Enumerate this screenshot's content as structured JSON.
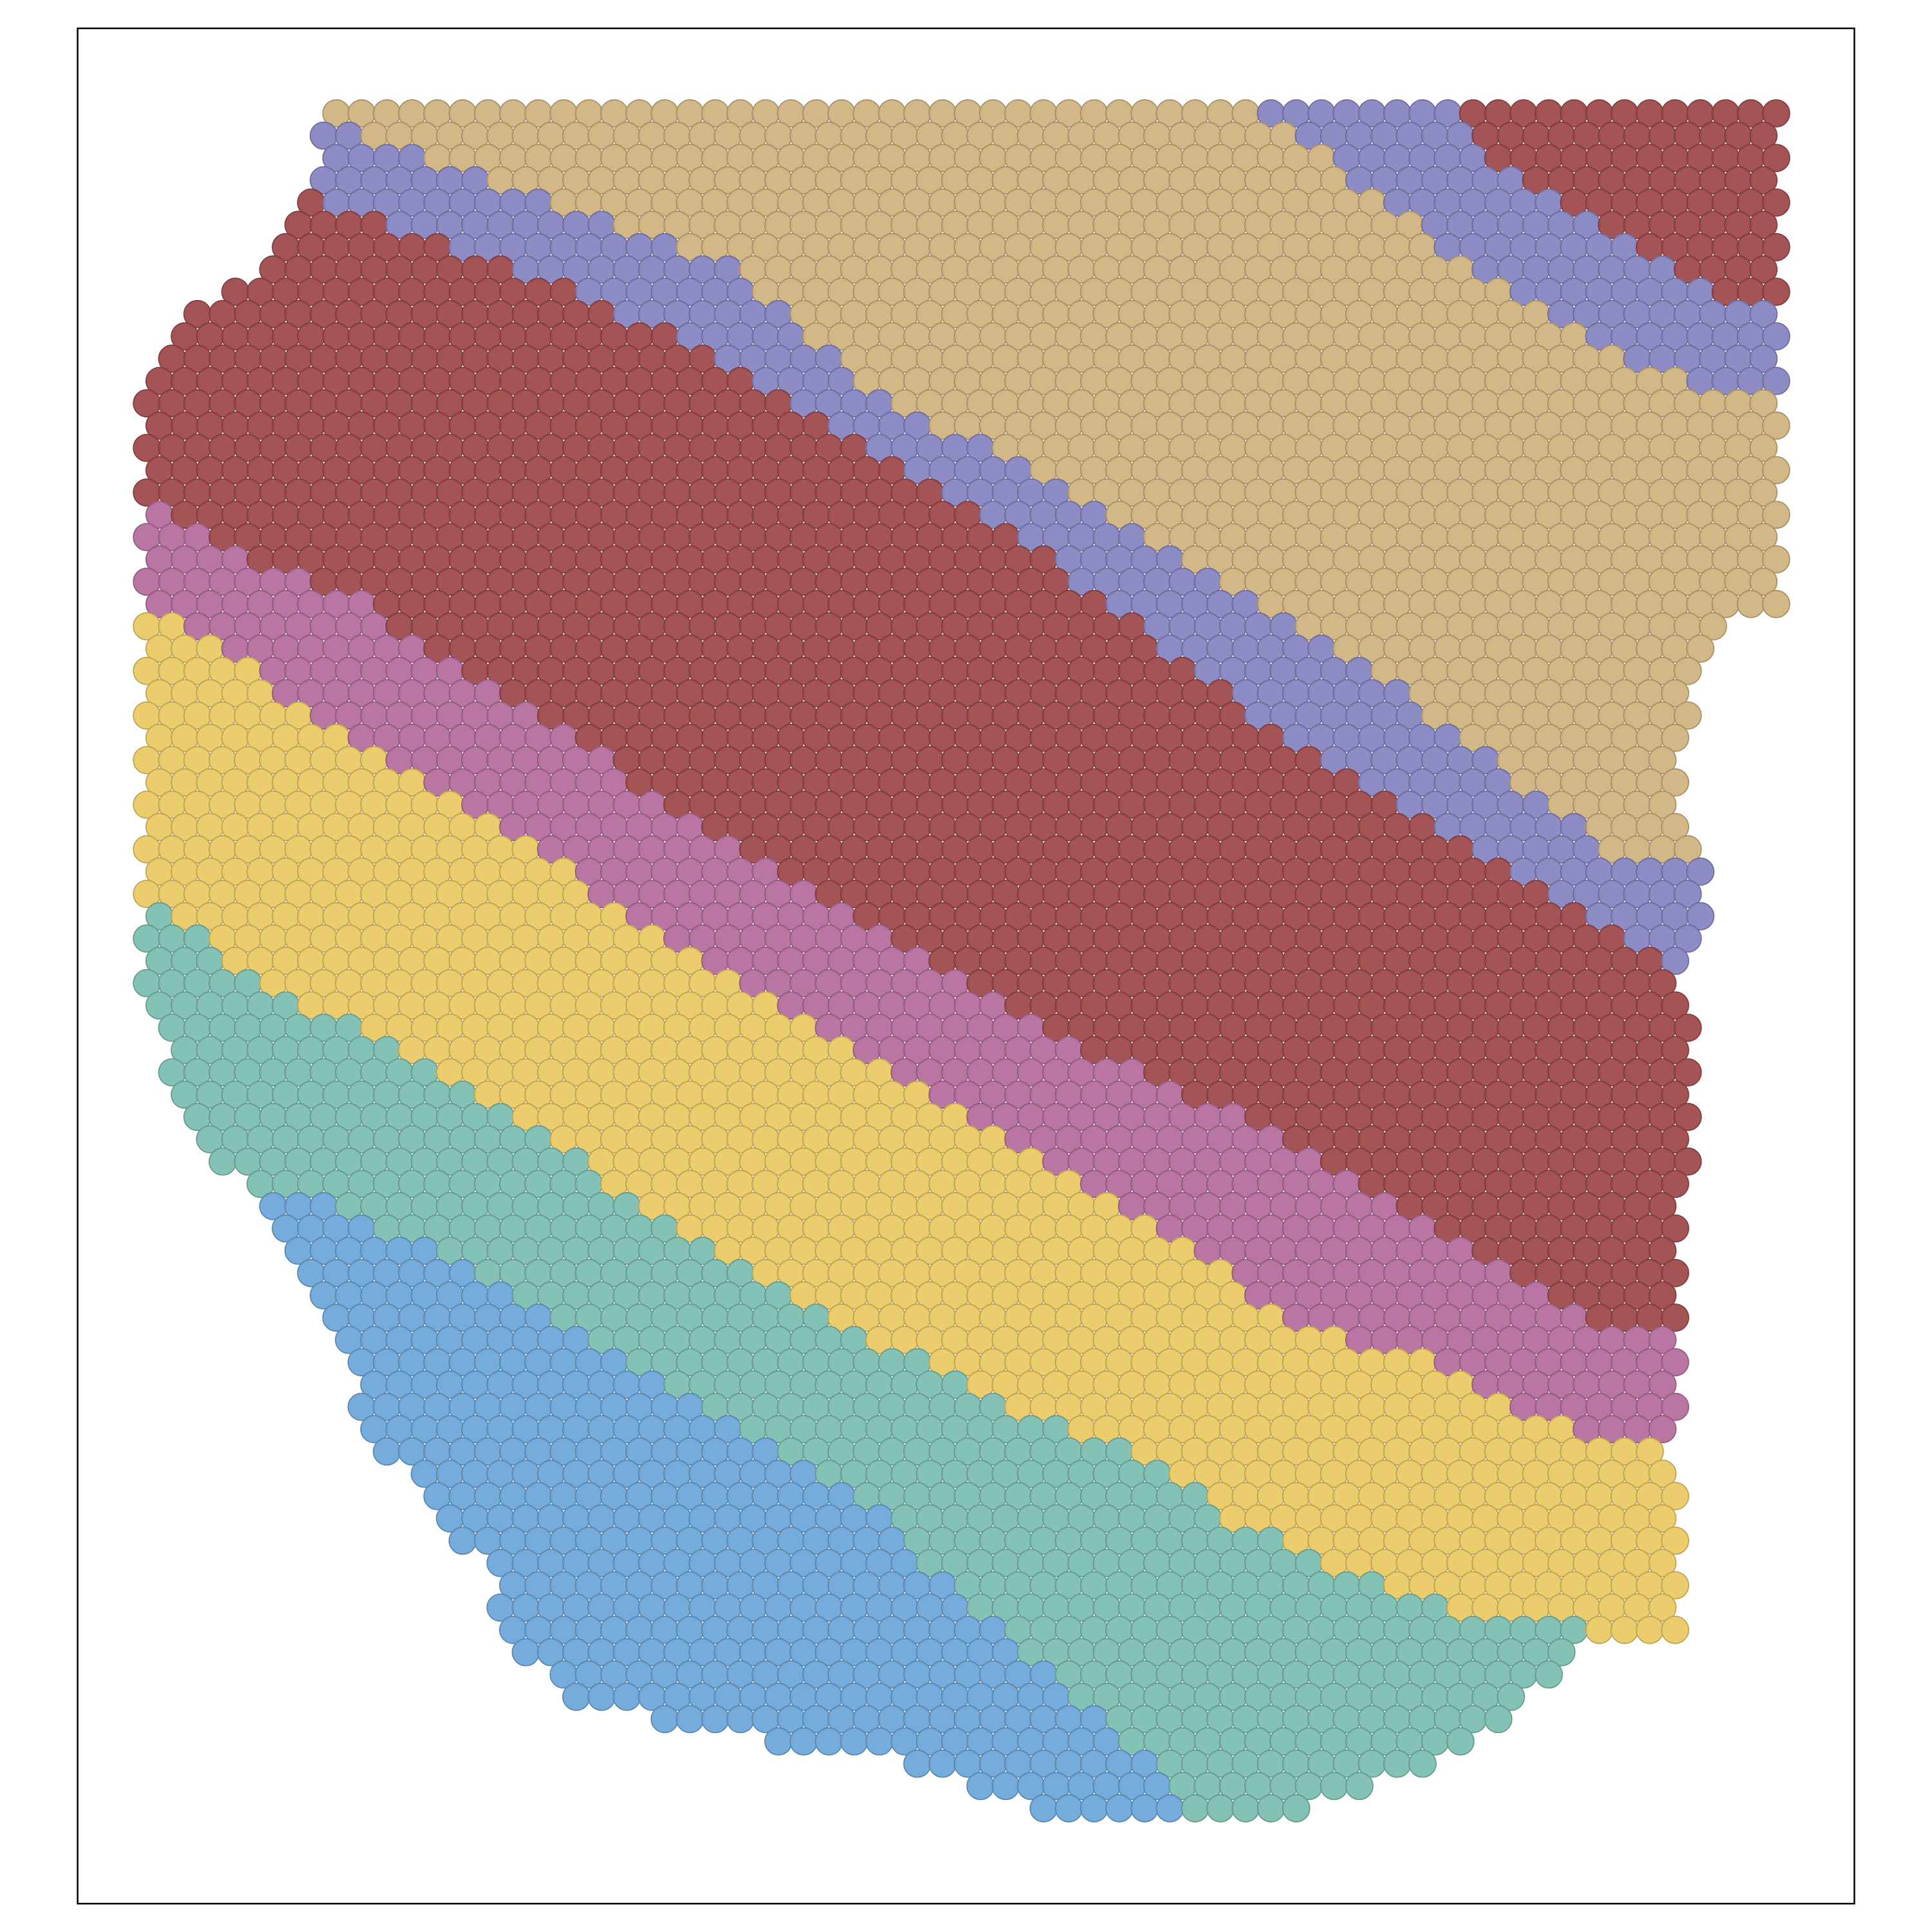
{
  "chart_data": {
    "type": "spatial",
    "xlim": [
      63,
      1505
    ],
    "ylim": [
      23,
      1545
    ],
    "tissue": [
      [
        270,
        82
      ],
      [
        1448,
        82
      ],
      [
        1448,
        340
      ],
      [
        1442,
        500
      ],
      [
        1388,
        512
      ],
      [
        1372,
        560
      ],
      [
        1368,
        660
      ],
      [
        1388,
        690
      ],
      [
        1382,
        742
      ],
      [
        1362,
        800
      ],
      [
        1372,
        822
      ],
      [
        1368,
        1092
      ],
      [
        1358,
        1180
      ],
      [
        1368,
        1322
      ],
      [
        1272,
        1342
      ],
      [
        1242,
        1382
      ],
      [
        1182,
        1422
      ],
      [
        1082,
        1462
      ],
      [
        992,
        1482
      ],
      [
        950,
        1478
      ],
      [
        830,
        1468
      ],
      [
        700,
        1422
      ],
      [
        600,
        1412
      ],
      [
        468,
        1382
      ],
      [
        418,
        1342
      ],
      [
        398,
        1282
      ],
      [
        338,
        1212
      ],
      [
        288,
        1152
      ],
      [
        288,
        1100
      ],
      [
        218,
        982
      ],
      [
        158,
        922
      ],
      [
        118,
        822
      ],
      [
        116,
        730
      ],
      [
        114,
        300
      ],
      [
        150,
        245
      ],
      [
        200,
        228
      ],
      [
        238,
        158
      ],
      [
        258,
        128
      ],
      [
        262,
        95
      ]
    ],
    "series": [
      {
        "color": "#d0b381",
        "region": [
          [
            0,
            0
          ],
          [
            1568,
            0
          ],
          [
            1568,
            1568
          ],
          [
            0,
            1568
          ]
        ]
      },
      {
        "color": "#8886c2",
        "region": [
          [
            0,
            100
          ],
          [
            280,
            108
          ],
          [
            350,
            130
          ],
          [
            500,
            180
          ],
          [
            600,
            222
          ],
          [
            700,
            310
          ],
          [
            900,
            420
          ],
          [
            1000,
            482
          ],
          [
            1150,
            572
          ],
          [
            1250,
            650
          ],
          [
            1320,
            700
          ],
          [
            1568,
            700
          ],
          [
            1568,
            1568
          ],
          [
            0,
            1568
          ]
        ]
      },
      {
        "color": "#8886c2",
        "region": [
          [
            1005,
            0
          ],
          [
            1568,
            0
          ],
          [
            1568,
            335
          ],
          [
            1380,
            312
          ],
          [
            1300,
            282
          ],
          [
            1270,
            262
          ],
          [
            1230,
            242
          ],
          [
            1170,
            202
          ],
          [
            1120,
            162
          ],
          [
            1060,
            112
          ],
          [
            1005,
            85
          ]
        ]
      },
      {
        "color": "#9f4b4c",
        "region": [
          [
            1172,
            0
          ],
          [
            1568,
            0
          ],
          [
            1568,
            262
          ],
          [
            1400,
            242
          ],
          [
            1320,
            192
          ],
          [
            1250,
            152
          ],
          [
            1200,
            120
          ],
          [
            1172,
            85
          ]
        ]
      },
      {
        "color": "#9f4b4c",
        "region": [
          [
            0,
            160
          ],
          [
            240,
            160
          ],
          [
            300,
            176
          ],
          [
            400,
            212
          ],
          [
            520,
            262
          ],
          [
            640,
            322
          ],
          [
            760,
            402
          ],
          [
            850,
            452
          ],
          [
            950,
            532
          ],
          [
            1050,
            602
          ],
          [
            1150,
            662
          ],
          [
            1250,
            722
          ],
          [
            1350,
            782
          ],
          [
            1568,
            800
          ],
          [
            1568,
            1568
          ],
          [
            0,
            1568
          ]
        ]
      },
      {
        "color": "#b56f9e",
        "region": [
          [
            0,
            398
          ],
          [
            110,
            398
          ],
          [
            200,
            450
          ],
          [
            300,
            492
          ],
          [
            400,
            562
          ],
          [
            500,
            622
          ],
          [
            600,
            692
          ],
          [
            700,
            742
          ],
          [
            800,
            802
          ],
          [
            900,
            862
          ],
          [
            1000,
            902
          ],
          [
            1100,
            962
          ],
          [
            1200,
            1022
          ],
          [
            1300,
            1072
          ],
          [
            1568,
            1092
          ],
          [
            1568,
            1568
          ],
          [
            0,
            1568
          ]
        ]
      },
      {
        "color": "#ebca66",
        "region": [
          [
            0,
            490
          ],
          [
            110,
            490
          ],
          [
            180,
            530
          ],
          [
            260,
            582
          ],
          [
            350,
            642
          ],
          [
            450,
            702
          ],
          [
            550,
            772
          ],
          [
            650,
            822
          ],
          [
            750,
            882
          ],
          [
            850,
            942
          ],
          [
            950,
            1002
          ],
          [
            1050,
            1072
          ],
          [
            1150,
            1102
          ],
          [
            1250,
            1152
          ],
          [
            1330,
            1172
          ],
          [
            1568,
            1172
          ],
          [
            1568,
            1568
          ],
          [
            0,
            1568
          ]
        ]
      },
      {
        "color": "#7ebfb2",
        "region": [
          [
            0,
            720
          ],
          [
            110,
            720
          ],
          [
            200,
            792
          ],
          [
            300,
            842
          ],
          [
            400,
            902
          ],
          [
            500,
            962
          ],
          [
            600,
            1032
          ],
          [
            700,
            1082
          ],
          [
            800,
            1132
          ],
          [
            900,
            1172
          ],
          [
            1000,
            1232
          ],
          [
            1100,
            1282
          ],
          [
            1200,
            1312
          ],
          [
            1270,
            1322
          ],
          [
            1568,
            1332
          ],
          [
            1568,
            1568
          ],
          [
            0,
            1568
          ]
        ]
      },
      {
        "color": "#6fa8d9",
        "region": [
          [
            0,
            955
          ],
          [
            200,
            958
          ],
          [
            300,
            990
          ],
          [
            400,
            1040
          ],
          [
            500,
            1100
          ],
          [
            600,
            1160
          ],
          [
            700,
            1212
          ],
          [
            780,
            1300
          ],
          [
            850,
            1352
          ],
          [
            900,
            1402
          ],
          [
            950,
            1452
          ],
          [
            975,
            1500
          ],
          [
            975,
            1568
          ],
          [
            0,
            1568
          ]
        ]
      }
    ]
  }
}
